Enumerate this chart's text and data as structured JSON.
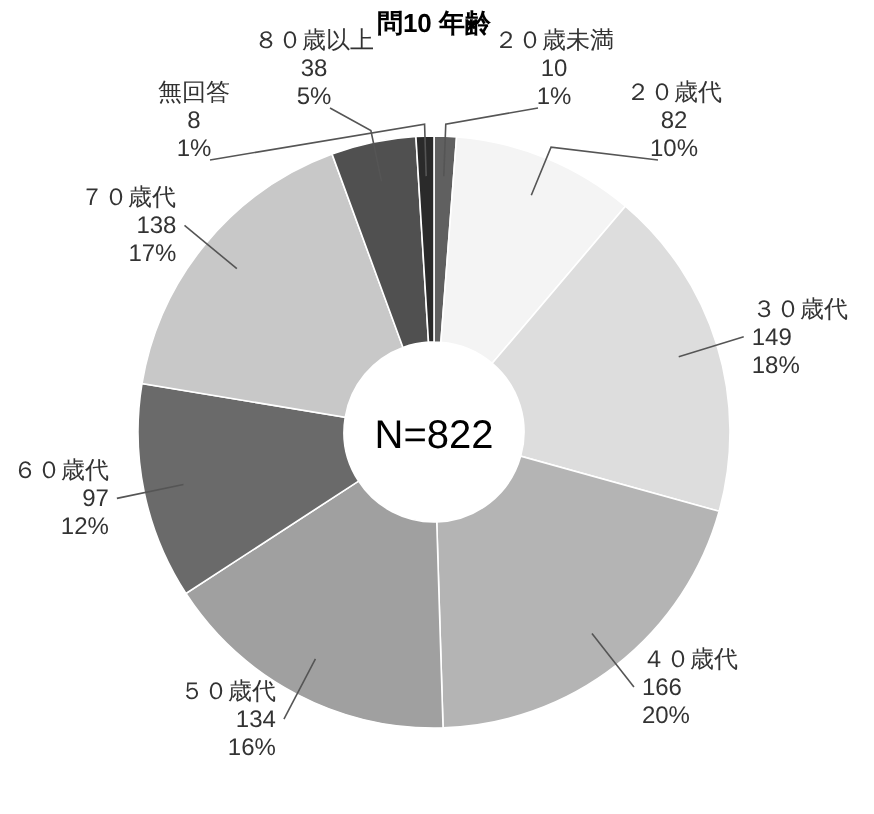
{
  "chart_data": {
    "type": "donut",
    "title": "問10 年齢",
    "categories": [
      "２０歳未満",
      "２０歳代",
      "３０歳代",
      "４０歳代",
      "５０歳代",
      "６０歳代",
      "７０歳代",
      "８０歳以上",
      "無回答"
    ],
    "values": [
      10,
      82,
      149,
      166,
      134,
      97,
      138,
      38,
      8
    ],
    "value_labels": [
      "10\n1%",
      "82\n10%",
      "149\n18%",
      "166\n20%",
      "134\n16%",
      "97\n12%",
      "138\n17%",
      "38\n5%",
      "8\n1%"
    ],
    "colors": [
      "#606060",
      "#f4f4f4",
      "#dddddd",
      "#b4b4b4",
      "#a0a0a0",
      "#6a6a6a",
      "#c8c8c8",
      "#505050",
      "#2a2a2a"
    ],
    "annotations": [
      "N=822"
    ]
  }
}
